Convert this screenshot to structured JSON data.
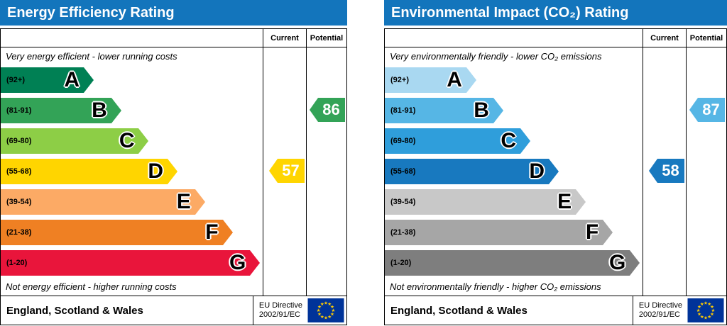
{
  "chart_data": [
    {
      "type": "bar",
      "title": "Energy Efficiency Rating",
      "columns": {
        "current": "Current",
        "potential": "Potential"
      },
      "top_note": "Very energy efficient - lower running costs",
      "bottom_note": "Not energy efficient - higher running costs",
      "header_color": "#1375bc",
      "bands": [
        {
          "letter": "A",
          "range": "(92+)",
          "color": "#008054",
          "width_pct": 35.5
        },
        {
          "letter": "B",
          "range": "(81-91)",
          "color": "#33a357",
          "width_pct": 46
        },
        {
          "letter": "C",
          "range": "(69-80)",
          "color": "#8dce46",
          "width_pct": 56.5
        },
        {
          "letter": "D",
          "range": "(55-68)",
          "color": "#ffd500",
          "width_pct": 67.5
        },
        {
          "letter": "E",
          "range": "(39-54)",
          "color": "#fcaa65",
          "width_pct": 78
        },
        {
          "letter": "F",
          "range": "(21-38)",
          "color": "#ef8023",
          "width_pct": 88.5
        },
        {
          "letter": "G",
          "range": "(1-20)",
          "color": "#e9153b",
          "width_pct": 99
        }
      ],
      "current": {
        "value": 57,
        "band": "D",
        "color": "#ffd500"
      },
      "potential": {
        "value": 86,
        "band": "B",
        "color": "#33a357"
      },
      "footer": {
        "region": "England, Scotland & Wales",
        "directive_line1": "EU Directive",
        "directive_line2": "2002/91/EC"
      }
    },
    {
      "type": "bar",
      "title": "Environmental Impact (CO₂) Rating",
      "columns": {
        "current": "Current",
        "potential": "Potential"
      },
      "top_note": "Very environmentally friendly - lower CO₂ emissions",
      "bottom_note": "Not environmentally friendly - higher CO₂ emissions",
      "header_color": "#1375bc",
      "bands": [
        {
          "letter": "A",
          "range": "(92+)",
          "color": "#a9d8f1",
          "width_pct": 35.5
        },
        {
          "letter": "B",
          "range": "(81-91)",
          "color": "#56b6e5",
          "width_pct": 46
        },
        {
          "letter": "C",
          "range": "(69-80)",
          "color": "#2f9edb",
          "width_pct": 56.5
        },
        {
          "letter": "D",
          "range": "(55-68)",
          "color": "#1879bf",
          "width_pct": 67.5
        },
        {
          "letter": "E",
          "range": "(39-54)",
          "color": "#c8c8c8",
          "width_pct": 78
        },
        {
          "letter": "F",
          "range": "(21-38)",
          "color": "#a6a6a6",
          "width_pct": 88.5
        },
        {
          "letter": "G",
          "range": "(1-20)",
          "color": "#7e7e7e",
          "width_pct": 99
        }
      ],
      "current": {
        "value": 58,
        "band": "D",
        "color": "#1879bf"
      },
      "potential": {
        "value": 87,
        "band": "B",
        "color": "#56b6e5"
      },
      "footer": {
        "region": "England, Scotland & Wales",
        "directive_line1": "EU Directive",
        "directive_line2": "2002/91/EC"
      }
    }
  ]
}
